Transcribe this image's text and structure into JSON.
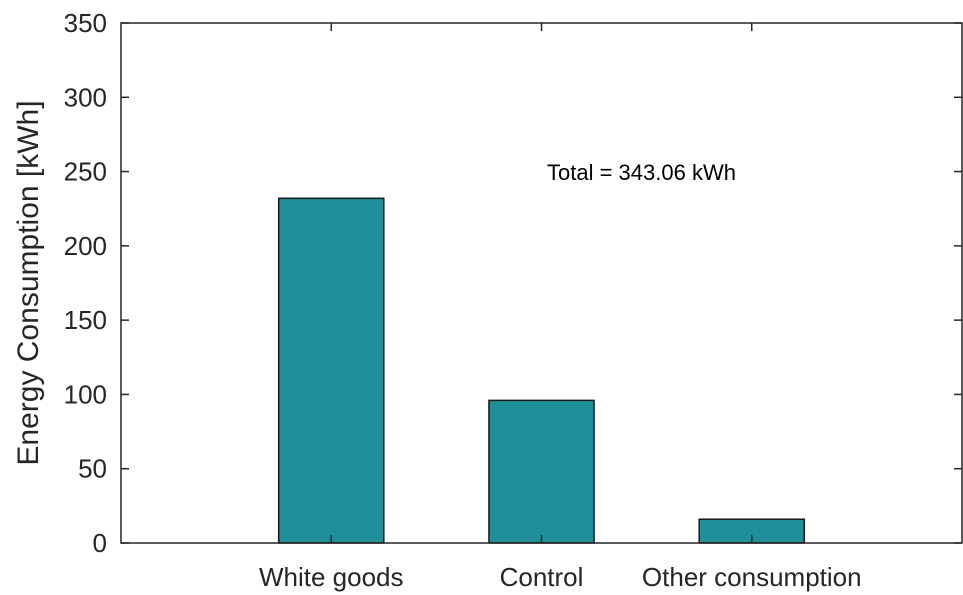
{
  "chart_data": {
    "type": "bar",
    "categories": [
      "White goods",
      "Control",
      "Other consumption"
    ],
    "values": [
      232,
      96,
      16
    ],
    "title": "",
    "xlabel": "",
    "ylabel": "Energy Consumption [kWh]",
    "ylim": [
      0,
      350
    ],
    "yticks": [
      0,
      50,
      100,
      150,
      200,
      250,
      300,
      350
    ],
    "xlim": [
      0,
      4
    ],
    "grid": false,
    "annotation": "Total = 343.06 kWh",
    "colors": {
      "bar_fill": "#1f8f99",
      "bar_edge": "#1a1a1a",
      "axis": "#262626"
    }
  }
}
